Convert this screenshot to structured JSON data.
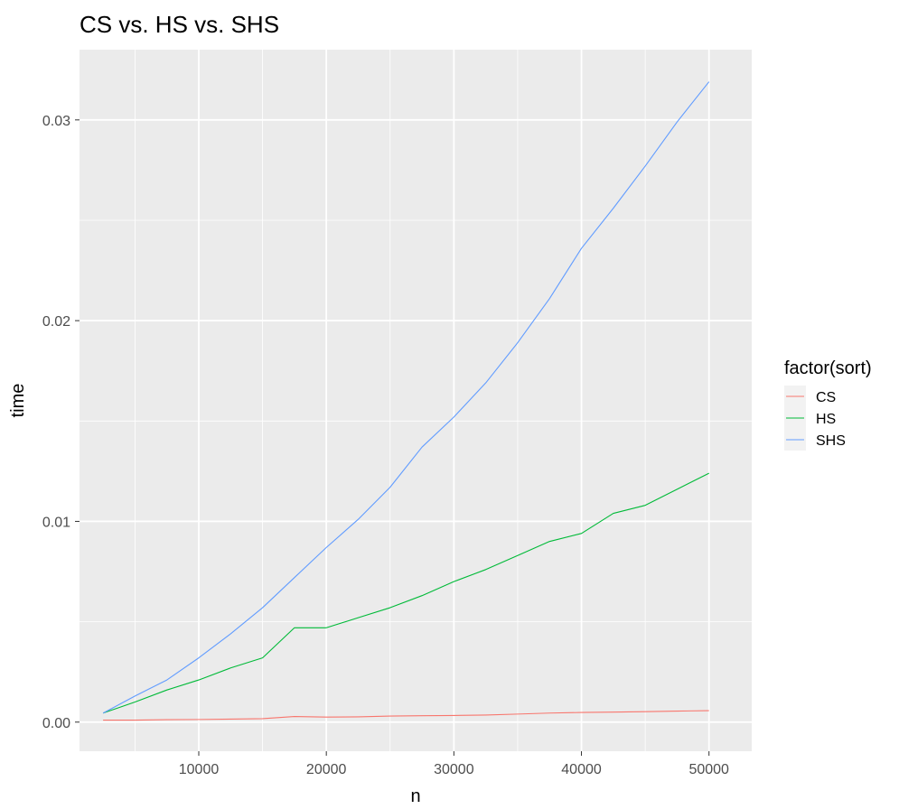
{
  "chart_data": {
    "type": "line",
    "title": "CS vs. HS vs. SHS",
    "xlabel": "n",
    "ylabel": "time",
    "xlim": [
      650,
      53350
    ],
    "ylim": [
      -0.00145,
      0.0335
    ],
    "x_ticks": [
      10000,
      20000,
      30000,
      40000,
      50000
    ],
    "x_tick_labels": [
      "10000",
      "20000",
      "30000",
      "40000",
      "50000"
    ],
    "x_minor_ticks": [
      5000,
      15000,
      25000,
      35000,
      45000
    ],
    "y_ticks": [
      0.0,
      0.01,
      0.02,
      0.03
    ],
    "y_tick_labels": [
      "0.00",
      "0.01",
      "0.02",
      "0.03"
    ],
    "y_minor_ticks": [
      0.005,
      0.015,
      0.025
    ],
    "grid": true,
    "legend": {
      "title": "factor(sort)",
      "position": "right"
    },
    "x": [
      2500,
      5000,
      7500,
      10000,
      12500,
      15000,
      17500,
      20000,
      22500,
      25000,
      27500,
      30000,
      32500,
      35000,
      37500,
      40000,
      42500,
      45000,
      47500,
      50000
    ],
    "series": [
      {
        "name": "CS",
        "color": "#F8766D",
        "values": [
          0.0001,
          0.0001,
          0.00012,
          0.00013,
          0.00015,
          0.00017,
          0.00028,
          0.00025,
          0.00026,
          0.0003,
          0.00032,
          0.00033,
          0.00035,
          0.0004,
          0.00045,
          0.00048,
          0.0005,
          0.00052,
          0.00055,
          0.00057
        ]
      },
      {
        "name": "HS",
        "color": "#00BA38",
        "values": [
          0.00045,
          0.001,
          0.0016,
          0.0021,
          0.0027,
          0.0032,
          0.0047,
          0.0047,
          0.0052,
          0.0057,
          0.0063,
          0.007,
          0.0076,
          0.0083,
          0.009,
          0.0094,
          0.0104,
          0.0108,
          0.0116,
          0.0124
        ]
      },
      {
        "name": "SHS",
        "color": "#619CFF",
        "values": [
          0.00045,
          0.0013,
          0.0021,
          0.0032,
          0.0044,
          0.0057,
          0.0072,
          0.0087,
          0.0101,
          0.0117,
          0.0137,
          0.0152,
          0.0169,
          0.0189,
          0.0211,
          0.0236,
          0.0256,
          0.0277,
          0.0299,
          0.0319
        ]
      }
    ]
  }
}
